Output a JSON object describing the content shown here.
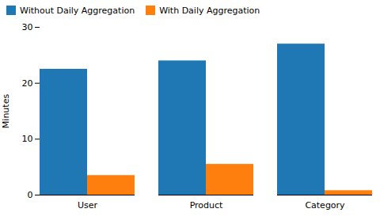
{
  "chart_data": {
    "type": "bar",
    "categories": [
      "User",
      "Product",
      "Category"
    ],
    "series": [
      {
        "name": "Without Daily Aggregation",
        "color": "#1f77b4",
        "values": [
          22.5,
          24.0,
          27.0
        ]
      },
      {
        "name": "With Daily Aggregation",
        "color": "#ff7f0e",
        "values": [
          3.5,
          5.5,
          0.8
        ]
      }
    ],
    "ylabel": "Minutes",
    "ylim": [
      0,
      30
    ],
    "yticks": [
      0,
      10,
      20,
      30
    ],
    "legend": "upper left"
  }
}
